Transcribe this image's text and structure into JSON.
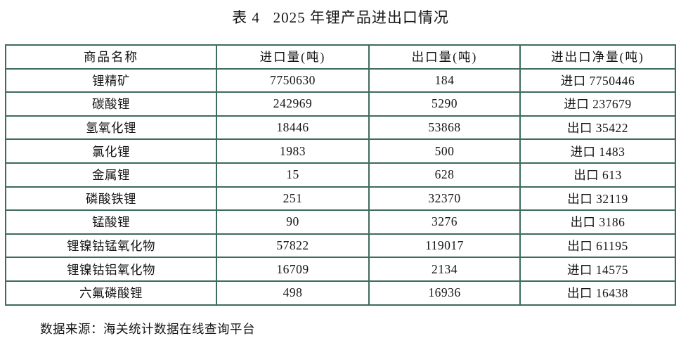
{
  "title": "表 4   2025 年锂产品进出口情况",
  "table": {
    "headers": [
      "商品名称",
      "进口量(吨)",
      "出口量(吨)",
      "进出口净量(吨)"
    ],
    "rows": [
      {
        "name": "锂精矿",
        "import": "7750630",
        "export": "184",
        "net": "进口 7750446"
      },
      {
        "name": "碳酸锂",
        "import": "242969",
        "export": "5290",
        "net": "进口 237679"
      },
      {
        "name": "氢氧化锂",
        "import": "18446",
        "export": "53868",
        "net": "出口 35422"
      },
      {
        "name": "氯化锂",
        "import": "1983",
        "export": "500",
        "net": "进口 1483"
      },
      {
        "name": "金属锂",
        "import": "15",
        "export": "628",
        "net": "出口 613"
      },
      {
        "name": "磷酸铁锂",
        "import": "251",
        "export": "32370",
        "net": "出口 32119"
      },
      {
        "name": "锰酸锂",
        "import": "90",
        "export": "3276",
        "net": "出口 3186"
      },
      {
        "name": "锂镍钴锰氧化物",
        "import": "57822",
        "export": "119017",
        "net": "出口 61195"
      },
      {
        "name": "锂镍钴铝氧化物",
        "import": "16709",
        "export": "2134",
        "net": "进口 14575"
      },
      {
        "name": "六氟磷酸锂",
        "import": "498",
        "export": "16936",
        "net": "出口 16438"
      }
    ]
  },
  "footer": {
    "source": "数据来源：海关统计数据在线查询平台"
  },
  "colors": {
    "border": "#3d6b5c",
    "text": "#141414",
    "background": "#ffffff"
  }
}
